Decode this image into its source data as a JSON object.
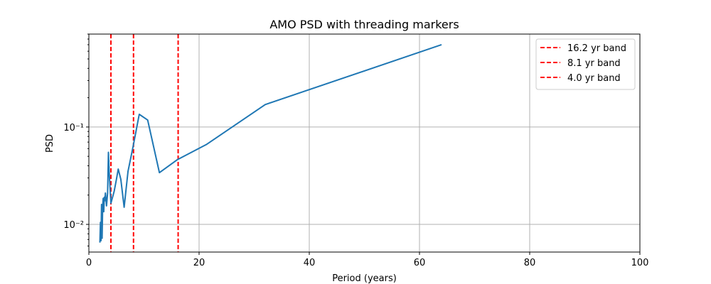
{
  "chart_data": {
    "type": "line",
    "title": "AMO PSD with threading markers",
    "xlabel": "Period (years)",
    "ylabel": "PSD",
    "xlim": [
      0,
      100
    ],
    "ylim": [
      0.0052,
      0.9
    ],
    "yscale": "log",
    "grid": true,
    "legend_position": "top-right",
    "x_ticks": [
      0,
      20,
      40,
      60,
      80,
      100
    ],
    "x_tick_labels": [
      "0",
      "20",
      "40",
      "60",
      "80",
      "100"
    ],
    "y_ticks": [
      0.01,
      0.1
    ],
    "y_tick_labels": [
      "10⁻²",
      "10⁻¹"
    ],
    "series": [
      {
        "color": "#1f77b4",
        "points": [
          [
            2.0,
            0.0065
          ],
          [
            2.1,
            0.0105
          ],
          [
            2.2,
            0.0068
          ],
          [
            2.3,
            0.016
          ],
          [
            2.4,
            0.0072
          ],
          [
            2.5,
            0.0155
          ],
          [
            2.6,
            0.0185
          ],
          [
            2.7,
            0.0135
          ],
          [
            2.8,
            0.019
          ],
          [
            2.9,
            0.0175
          ],
          [
            3.0,
            0.021
          ],
          [
            3.2,
            0.0155
          ],
          [
            3.4,
            0.021
          ],
          [
            3.55,
            0.055
          ],
          [
            3.7,
            0.033
          ],
          [
            4.0,
            0.0165
          ],
          [
            4.6,
            0.022
          ],
          [
            5.0,
            0.029
          ],
          [
            5.33,
            0.037
          ],
          [
            5.8,
            0.029
          ],
          [
            6.4,
            0.015
          ],
          [
            7.1,
            0.035
          ],
          [
            8.0,
            0.062
          ],
          [
            9.14,
            0.135
          ],
          [
            10.67,
            0.118
          ],
          [
            12.8,
            0.034
          ],
          [
            16.0,
            0.046
          ],
          [
            21.3,
            0.066
          ],
          [
            32.0,
            0.17
          ],
          [
            64.0,
            0.7
          ]
        ]
      }
    ],
    "vlines": [
      {
        "x": 16.2,
        "label": "16.2 yr band",
        "color": "#ff0000"
      },
      {
        "x": 8.1,
        "label": "8.1 yr band",
        "color": "#ff0000"
      },
      {
        "x": 4.0,
        "label": "4.0 yr band",
        "color": "#ff0000"
      }
    ]
  }
}
